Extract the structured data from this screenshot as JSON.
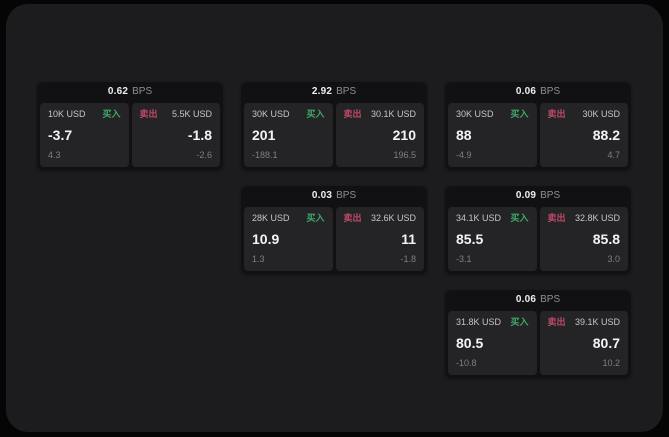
{
  "labels": {
    "buy_tag": "买入",
    "sell_tag": "卖出",
    "bps_unit": "BPS"
  },
  "colors": {
    "buy": "#3fa868",
    "sell": "#c04a68",
    "panel_bg": "#1c1c1e",
    "card_bg": "#111113",
    "subcard_bg": "#242427",
    "outer_bg": "#050505"
  },
  "cards": [
    {
      "row": 1,
      "col": 1,
      "bps": "0.62",
      "buy": {
        "amount": "10K USD",
        "value": "-3.7",
        "delta": "4.3"
      },
      "sell": {
        "amount": "5.5K USD",
        "value": "-1.8",
        "delta": "-2.6"
      }
    },
    {
      "row": 1,
      "col": 2,
      "bps": "2.92",
      "buy": {
        "amount": "30K USD",
        "value": "201",
        "delta": "-188.1"
      },
      "sell": {
        "amount": "30.1K USD",
        "value": "210",
        "delta": "196.5"
      }
    },
    {
      "row": 1,
      "col": 3,
      "bps": "0.06",
      "buy": {
        "amount": "30K USD",
        "value": "88",
        "delta": "-4.9"
      },
      "sell": {
        "amount": "30K USD",
        "value": "88.2",
        "delta": "4.7"
      }
    },
    {
      "row": 2,
      "col": 2,
      "bps": "0.03",
      "buy": {
        "amount": "28K USD",
        "value": "10.9",
        "delta": "1.3"
      },
      "sell": {
        "amount": "32.6K USD",
        "value": "11",
        "delta": "-1.8"
      }
    },
    {
      "row": 2,
      "col": 3,
      "bps": "0.09",
      "buy": {
        "amount": "34.1K USD",
        "value": "85.5",
        "delta": "-3.1"
      },
      "sell": {
        "amount": "32.8K USD",
        "value": "85.8",
        "delta": "3.0"
      }
    },
    {
      "row": 3,
      "col": 3,
      "bps": "0.06",
      "buy": {
        "amount": "31.8K USD",
        "value": "80.5",
        "delta": "-10.8"
      },
      "sell": {
        "amount": "39.1K USD",
        "value": "80.7",
        "delta": "10.2"
      }
    }
  ]
}
